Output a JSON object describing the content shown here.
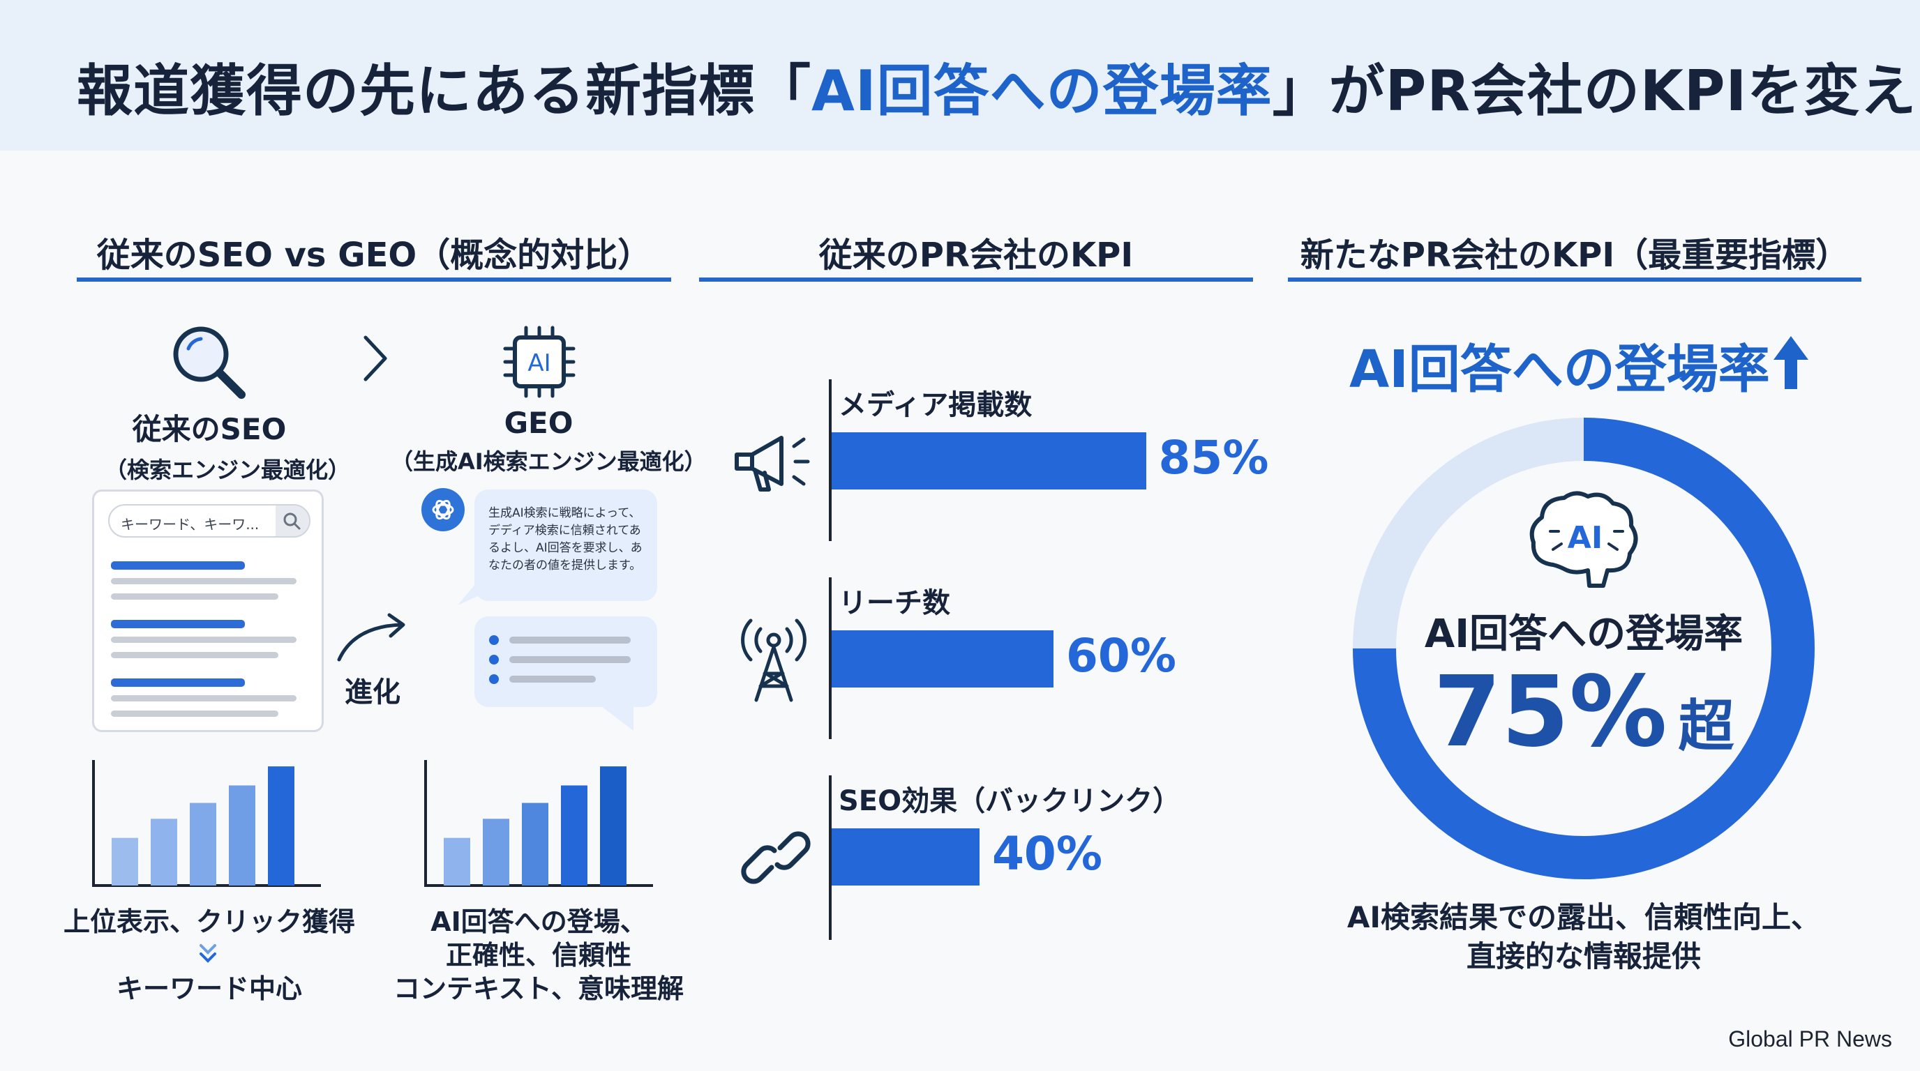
{
  "title": {
    "prefix": "報道獲得の先にある新指標「",
    "accent": "AI回答への登場率",
    "suffix": "」がPR会社のKPIを変える"
  },
  "left": {
    "section_title": "従来のSEO vs GEO（概念的対比）",
    "seo": {
      "title": "従来のSEO",
      "subtitle": "（検索エンジン最適化）",
      "search_placeholder": "キーワード、キーワ..."
    },
    "geo": {
      "title": "GEO",
      "subtitle": "（生成AI検索エンジン最適化）",
      "chip": "AI",
      "bubble_text": "生成AI検索に戦略によって、デディア検索に信頼されてあるよし、AI回答を要求し、あなたの者の値を提供します。"
    },
    "evolution_label": "進化",
    "seo_caption_1": "上位表示、クリック獲得",
    "seo_caption_2": "キーワード中心",
    "geo_caption_1": "AI回答への登場、",
    "geo_caption_2": "正確性、信頼性",
    "geo_caption_3": "コンテキスト、意味理解"
  },
  "middle": {
    "section_title": "従来のPR会社のKPI"
  },
  "right": {
    "section_title": "新たなPR会社のKPI（最重要指標）",
    "headline": "AI回答への登場率",
    "brain_label": "AI",
    "donut_label": "AI回答への登場率",
    "donut_value": "75%",
    "donut_suffix": "超",
    "caption_1": "AI検索結果での露出、信頼性向上、",
    "caption_2": "直接的な情報提供"
  },
  "source": "Global PR News",
  "colors": {
    "accent": "#2467d8",
    "title_accent": "#1d63c9",
    "header_bg": "#e8f0fa",
    "donut_track": "#dbe6f7"
  },
  "chart_data": [
    {
      "type": "bar",
      "orientation": "horizontal",
      "categories": [
        "メディア掲載数",
        "リーチ数",
        "SEO効果（バックリンク）"
      ],
      "values": [
        85,
        60,
        40
      ],
      "value_labels": [
        "85%",
        "60%",
        "40%"
      ],
      "icons": [
        "megaphone-icon",
        "antenna-icon",
        "link-icon"
      ],
      "xlim": [
        0,
        100
      ]
    },
    {
      "type": "pie",
      "variant": "donut",
      "values": [
        75,
        25
      ],
      "highlight_index": 0
    },
    {
      "type": "bar",
      "categories": [
        "1",
        "2",
        "3",
        "4",
        "5"
      ],
      "values": [
        30,
        42,
        52,
        63,
        75
      ],
      "ylim": [
        0,
        100
      ],
      "highlight_index": 4
    },
    {
      "type": "bar",
      "categories": [
        "1",
        "2",
        "3",
        "4",
        "5"
      ],
      "values": [
        30,
        42,
        52,
        63,
        75
      ],
      "ylim": [
        0,
        100
      ],
      "highlight_index": 4
    }
  ]
}
